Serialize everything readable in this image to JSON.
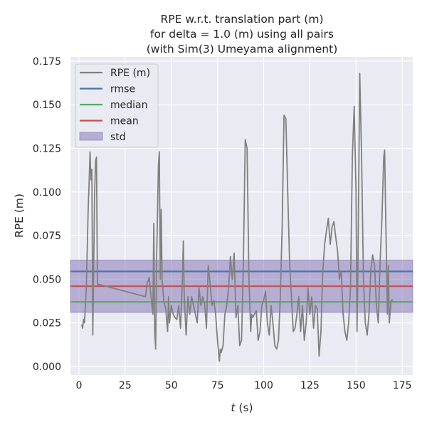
{
  "chart_data": {
    "type": "line",
    "title": [
      "RPE w.r.t. translation part (m)",
      "for delta = 1.0 (m) using all pairs",
      "(with Sim(3) Umeyama alignment)"
    ],
    "xlabel_italic": "t",
    "xlabel_unit": " (s)",
    "ylabel": "RPE (m)",
    "xlim": [
      -4.6,
      180.7
    ],
    "ylim": [
      -0.0049,
      0.1774
    ],
    "xticks": [
      0,
      25,
      50,
      75,
      100,
      125,
      150,
      175
    ],
    "xtick_labels": [
      "0",
      "25",
      "50",
      "75",
      "100",
      "125",
      "150",
      "175"
    ],
    "yticks": [
      0.0,
      0.025,
      0.05,
      0.075,
      0.1,
      0.125,
      0.15,
      0.175
    ],
    "ytick_labels": [
      "0.000",
      "0.025",
      "0.050",
      "0.075",
      "0.100",
      "0.125",
      "0.150",
      "0.175"
    ],
    "grid": true,
    "legend_placement": "top-left",
    "legend": [
      "RPE (m)",
      "rmse",
      "median",
      "mean",
      "std"
    ],
    "colors": {
      "rpe": "#808080",
      "rmse": "#4c72b0",
      "median": "#55a868",
      "mean": "#c44e52",
      "std": "#8172b2",
      "background": "#eaeaf2"
    },
    "stats": {
      "rmse": 0.0545,
      "mean": 0.046,
      "median": 0.037,
      "std_low": 0.031,
      "std_high": 0.061
    },
    "series": {
      "name": "RPE (m)",
      "t": [
        1.5,
        2,
        2.5,
        3,
        4,
        5,
        5.5,
        6,
        6.5,
        7,
        7.5,
        8,
        8.5,
        9,
        9.5,
        10,
        11,
        36,
        37,
        38,
        39,
        40,
        40.5,
        41,
        41.5,
        42,
        43,
        43.5,
        44,
        44.5,
        45,
        46,
        47,
        48,
        48.5,
        49,
        50,
        51,
        52,
        53,
        54,
        55,
        56,
        56.5,
        57,
        58,
        59,
        60,
        61,
        62,
        63,
        64,
        65,
        66,
        67,
        68,
        69,
        70,
        71,
        72,
        73,
        74,
        75,
        76,
        76.5,
        77,
        78,
        79,
        80,
        81,
        82,
        83,
        84,
        85,
        86,
        87,
        88,
        89,
        90,
        91,
        92,
        93,
        93.5,
        94,
        95,
        96,
        97,
        98,
        99,
        100,
        101,
        102,
        103,
        104,
        105,
        106,
        107,
        108,
        109,
        110,
        111,
        112,
        113,
        114,
        115,
        116,
        117,
        118,
        119,
        120,
        121,
        122,
        123,
        124,
        125,
        126,
        127,
        128,
        129,
        130,
        131,
        132,
        133,
        134,
        135,
        136,
        137,
        138,
        139,
        140,
        141,
        142,
        143,
        144,
        145,
        146,
        147,
        148,
        149,
        150,
        150.5,
        151,
        152,
        153,
        154,
        155,
        156,
        157,
        158,
        159,
        160,
        161,
        162,
        163,
        164,
        165,
        165.5,
        166,
        167,
        167.5,
        168,
        169,
        170
      ],
      "values": [
        0.024,
        0.022,
        0.027,
        0.025,
        0.045,
        0.09,
        0.105,
        0.123,
        0.107,
        0.113,
        0.018,
        0.06,
        0.1,
        0.118,
        0.12,
        0.047,
        0.047,
        0.04,
        0.048,
        0.051,
        0.04,
        0.03,
        0.082,
        0.02,
        0.01,
        0.06,
        0.115,
        0.123,
        0.05,
        0.09,
        0.05,
        0.037,
        0.033,
        0.02,
        0.04,
        0.025,
        0.035,
        0.03,
        0.028,
        0.027,
        0.035,
        0.022,
        0.05,
        0.072,
        0.04,
        0.018,
        0.04,
        0.03,
        0.04,
        0.035,
        0.03,
        0.025,
        0.045,
        0.035,
        0.04,
        0.036,
        0.022,
        0.058,
        0.048,
        0.035,
        0.038,
        0.03,
        0.015,
        0.003,
        0.01,
        0.008,
        0.012,
        0.03,
        0.035,
        0.045,
        0.063,
        0.05,
        0.065,
        0.028,
        0.035,
        0.012,
        0.015,
        0.06,
        0.13,
        0.125,
        0.05,
        0.02,
        0.03,
        0.028,
        0.03,
        0.032,
        0.015,
        0.02,
        0.035,
        0.038,
        0.043,
        0.025,
        0.018,
        0.035,
        0.025,
        0.012,
        0.01,
        0.015,
        0.04,
        0.08,
        0.144,
        0.142,
        0.1,
        0.06,
        0.04,
        0.02,
        0.022,
        0.03,
        0.04,
        0.02,
        0.035,
        0.015,
        0.025,
        0.045,
        0.03,
        0.04,
        0.022,
        0.035,
        0.033,
        0.006,
        0.02,
        0.055,
        0.07,
        0.078,
        0.085,
        0.07,
        0.08,
        0.083,
        0.074,
        0.066,
        0.05,
        0.055,
        0.03,
        0.02,
        0.015,
        0.025,
        0.045,
        0.12,
        0.149,
        0.1,
        0.02,
        0.055,
        0.168,
        0.12,
        0.05,
        0.025,
        0.018,
        0.03,
        0.055,
        0.064,
        0.058,
        0.035,
        0.025,
        0.06,
        0.085,
        0.12,
        0.124,
        0.09,
        0.03,
        0.058,
        0.025,
        0.038,
        0.038
      ]
    }
  }
}
